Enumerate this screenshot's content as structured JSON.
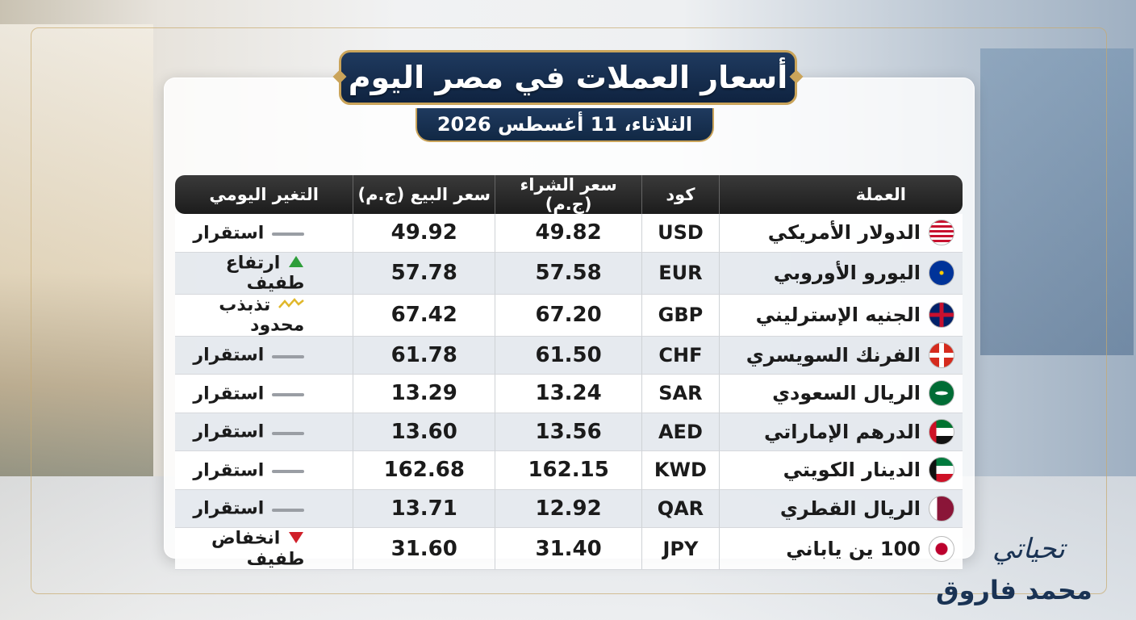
{
  "header": {
    "title": "أسعار العملات في مصر اليوم",
    "date": "الثلاثاء، 11 أغسطس 2026"
  },
  "table": {
    "columns": [
      "العملة",
      "كود",
      "سعر الشراء (ج.م)",
      "سعر البيع (ج.م)",
      "التغير اليومي"
    ],
    "rows": [
      [
        "الدولار الأمريكي",
        "USD",
        "49.82",
        "49.92",
        "استقرار"
      ],
      [
        "اليورو الأوروبي",
        "EUR",
        "57.58",
        "57.78",
        "ارتفاع طفيف"
      ],
      [
        "الجنيه الإسترليني",
        "GBP",
        "67.20",
        "67.42",
        "تذبذب محدود"
      ],
      [
        "الفرنك السويسري",
        "CHF",
        "61.50",
        "61.78",
        "استقرار"
      ],
      [
        "الريال السعودي",
        "SAR",
        "13.24",
        "13.29",
        "استقرار"
      ],
      [
        "الدرهم الإماراتي",
        "AED",
        "13.56",
        "13.60",
        "استقرار"
      ],
      [
        "الدينار الكويتي",
        "KWD",
        "162.15",
        "162.68",
        "استقرار"
      ],
      [
        "الريال القطري",
        "QAR",
        "12.92",
        "13.71",
        "استقرار"
      ],
      [
        "100 ين ياباني",
        "JPY",
        "31.40",
        "31.60",
        "انخفاض طفيف"
      ]
    ]
  },
  "signature": {
    "greeting": "تحياتي",
    "name": "محمد فاروق"
  }
}
